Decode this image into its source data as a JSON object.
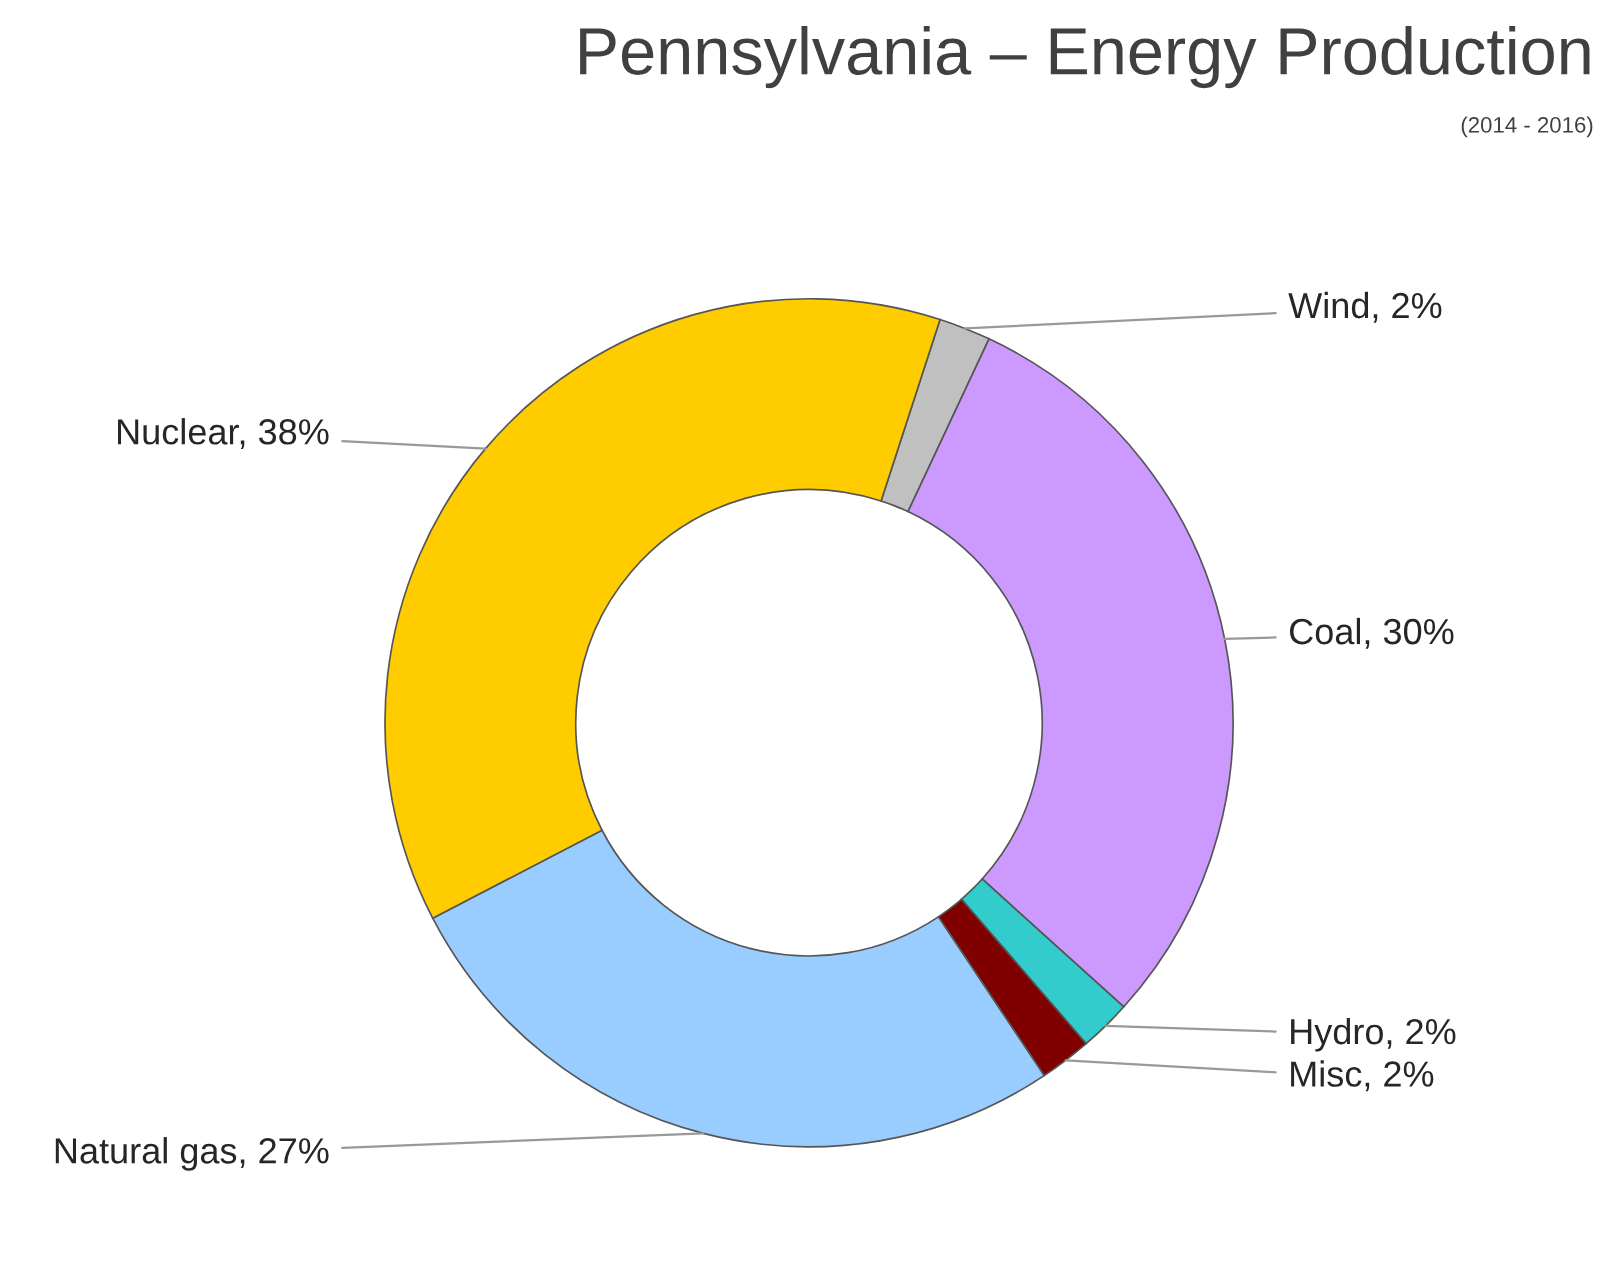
{
  "chart_data": {
    "type": "donut",
    "title": "Pennsylvania – Energy Production",
    "subtitle": "(2014 - 2016)",
    "categories": [
      "Wind",
      "Coal",
      "Hydro",
      "Misc",
      "Natural gas",
      "Nuclear"
    ],
    "values": [
      2,
      30,
      2,
      2,
      27,
      38
    ],
    "value_labels": [
      "2%",
      "30%",
      "2%",
      "2%",
      "27%",
      "38%"
    ],
    "colors": [
      "#c0c0c0",
      "#cc99ff",
      "#33cccc",
      "#800000",
      "#99ccff",
      "#ffcc00"
    ],
    "legend": false
  }
}
